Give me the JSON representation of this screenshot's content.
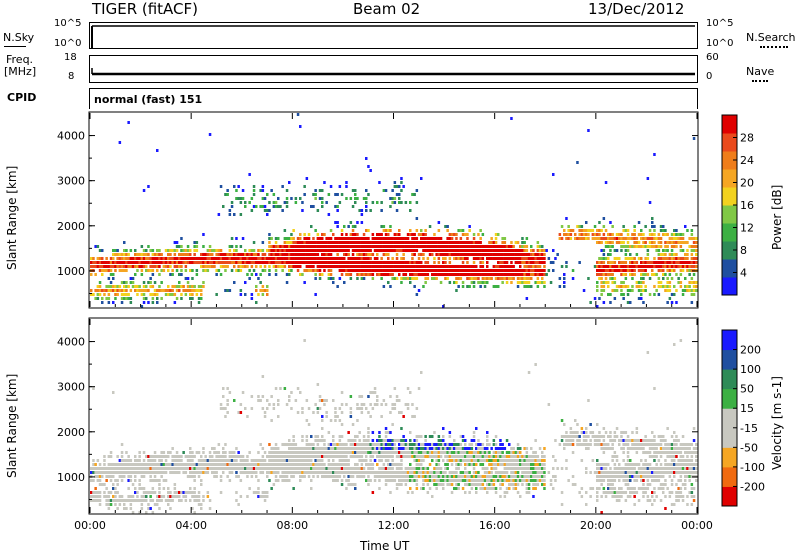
{
  "header": {
    "radar": "TIGER (fitACF)",
    "beam": "Beam 02",
    "date": "13/Dec/2012"
  },
  "top_panels": {
    "nsky_label": "N.Sky",
    "nsky_ticks": [
      "10^5",
      "10^0"
    ],
    "nsearch_label": "N.Search",
    "nsearch_ticks": [
      "10^5",
      "10^0"
    ],
    "freq_label": "Freq.",
    "freq_unit": "[MHz]",
    "freq_ticks": [
      "18",
      "8"
    ],
    "nave_label": "Nave",
    "nave_ticks": [
      "60",
      "0"
    ],
    "cpid_label": "CPID",
    "cpid_text": "normal (fast) 151"
  },
  "colors": {
    "power": [
      "#1a1aff",
      "#1f4fa0",
      "#2e8b57",
      "#3cb043",
      "#80c845",
      "#f2d21f",
      "#f5a623",
      "#ef7d1a",
      "#ea4a1c",
      "#e00000"
    ],
    "velocity": [
      "#e00000",
      "#f06a10",
      "#f5a623",
      "#c8c8c0",
      "#c8c8c0",
      "#3cb043",
      "#2e8b57",
      "#1f4fa0",
      "#1a1aff"
    ]
  },
  "chart_data": [
    {
      "type": "heatmap",
      "name": "power",
      "ylabel": "Slant Range [km]",
      "yticks": [
        1000,
        2000,
        3000,
        4000
      ],
      "ylim": [
        200,
        4500
      ],
      "xlim_hours": [
        0,
        24
      ],
      "colorbar_label": "Power [dB]",
      "colorbar_ticks": [
        "4",
        "8",
        "12",
        "16",
        "20",
        "24",
        "28"
      ],
      "colorbar_range": [
        0,
        32
      ]
    },
    {
      "type": "heatmap",
      "name": "velocity",
      "ylabel": "Slant Range [km]",
      "yticks": [
        1000,
        2000,
        3000,
        4000
      ],
      "ylim": [
        200,
        4500
      ],
      "xlim_hours": [
        0,
        24
      ],
      "xticks": [
        "00:00",
        "04:00",
        "08:00",
        "12:00",
        "16:00",
        "20:00",
        "00:00"
      ],
      "xlabel": "Time UT",
      "colorbar_label": "Velocity [m s-1]",
      "colorbar_ticks": [
        "-200",
        "-100",
        "-50",
        "-15",
        "15",
        "50",
        "100",
        "200"
      ]
    }
  ]
}
